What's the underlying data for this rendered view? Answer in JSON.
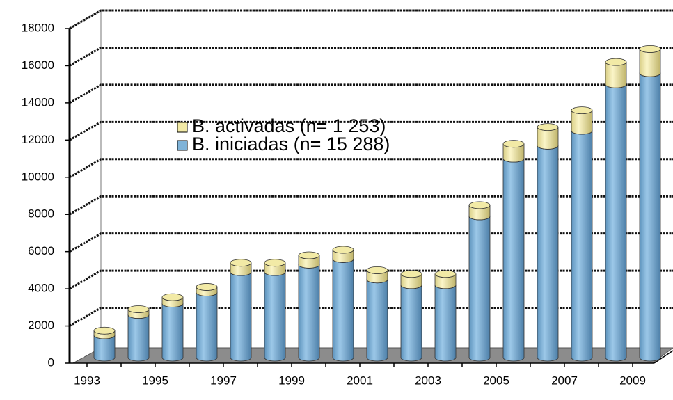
{
  "chart_data": {
    "type": "bar3d-stacked",
    "categories": [
      "1993",
      null,
      "1995",
      null,
      "1997",
      null,
      "1999",
      null,
      "2001",
      null,
      "2003",
      null,
      "2005",
      null,
      "2007",
      null,
      "2009"
    ],
    "series": [
      {
        "name": "B. iniciadas (n= 15 288)",
        "color": "#7fb3d8",
        "values": [
          1200,
          2300,
          2900,
          3500,
          4600,
          4600,
          5000,
          5300,
          4200,
          3900,
          3900,
          7600,
          10700,
          11400,
          12200,
          14700,
          15300
        ]
      },
      {
        "name": "B. activadas (n= 1 253)",
        "color": "#f2eaa6",
        "values": [
          250,
          300,
          350,
          300,
          500,
          500,
          500,
          500,
          500,
          600,
          600,
          600,
          800,
          1000,
          1100,
          1200,
          1300
        ]
      }
    ],
    "ylim": [
      0,
      18000
    ],
    "yticks": [
      0,
      2000,
      4000,
      6000,
      8000,
      10000,
      12000,
      14000,
      16000,
      18000
    ],
    "grid": true,
    "stacked": true,
    "legend": "upper left"
  }
}
